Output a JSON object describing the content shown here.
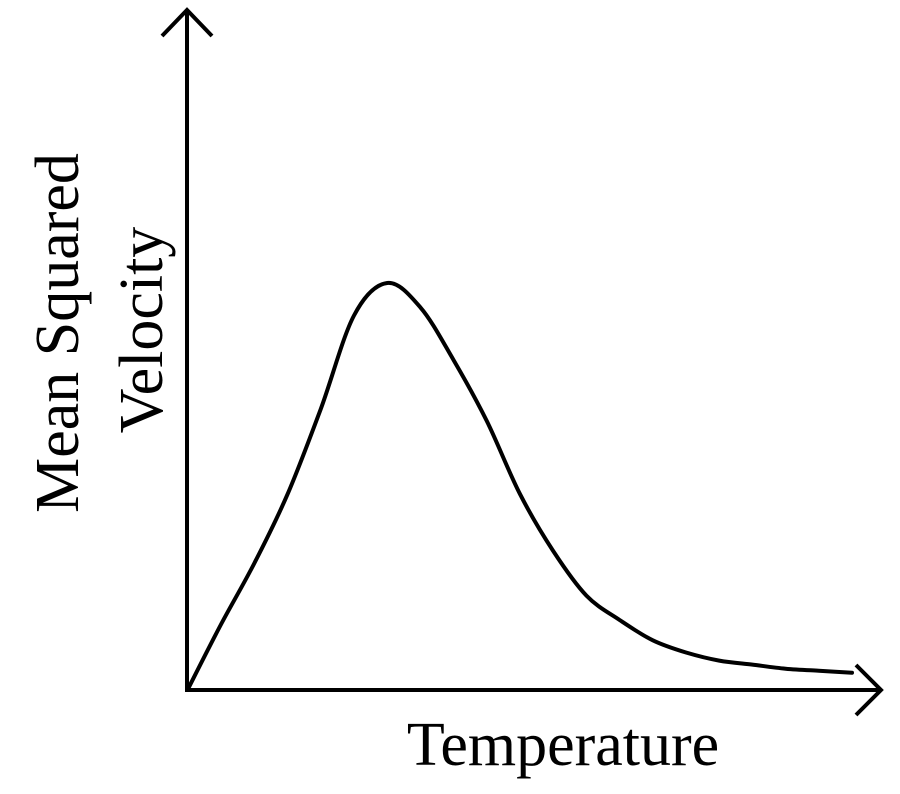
{
  "chart_data": {
    "type": "line",
    "title": "",
    "xlabel": "Temperature",
    "ylabel_lines": [
      "Mean Squared",
      "Velocity"
    ],
    "ticks": "none",
    "grid": false,
    "legend": "none",
    "line_color": "#000000",
    "axis_color": "#000000",
    "series": [
      {
        "x": [
          0,
          5,
          10,
          15,
          20,
          25,
          30,
          35,
          40,
          45,
          50,
          55,
          60,
          65,
          70,
          75,
          80,
          85,
          90,
          95,
          100
        ],
        "values": [
          0,
          16,
          31,
          48,
          69,
          92,
          100,
          94,
          81,
          66,
          48,
          34,
          23,
          17,
          12,
          9,
          7,
          6,
          5,
          4.5,
          4
        ]
      }
    ]
  }
}
